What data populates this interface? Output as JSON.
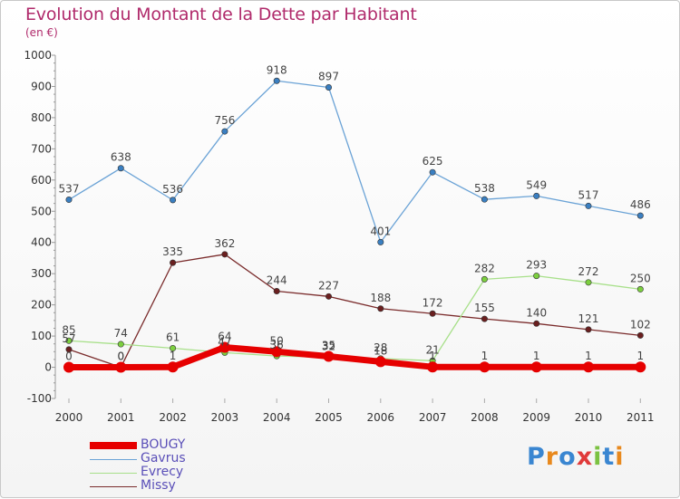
{
  "title": "Evolution du Montant de la Dette par Habitant",
  "unit_label": "(en €)",
  "logo_text": "Proxiti",
  "chart_data": {
    "type": "line",
    "title": "Evolution du Montant de la Dette par Habitant",
    "ylabel": "(en €)",
    "categories": [
      "2000",
      "2001",
      "2002",
      "2003",
      "2004",
      "2005",
      "2006",
      "2007",
      "2008",
      "2009",
      "2010",
      "2011"
    ],
    "ylim": [
      -100,
      1000
    ],
    "yticks": [
      -100,
      0,
      100,
      200,
      300,
      400,
      500,
      600,
      700,
      800,
      900,
      1000
    ],
    "grid": false,
    "legend_position": "bottom-left",
    "series": [
      {
        "name": "Gavrus",
        "color": "#6ba3d6",
        "marker": "#3a7fc1",
        "values": [
          537,
          638,
          536,
          756,
          918,
          897,
          401,
          625,
          538,
          549,
          517,
          486
        ],
        "labels": [
          "537",
          "638",
          "536",
          "756",
          "918",
          "897",
          "401",
          "625",
          "538",
          "549",
          "517",
          "486"
        ]
      },
      {
        "name": "Missy",
        "color": "#7a2b2b",
        "marker": "#6a1f1f",
        "values": [
          57,
          0,
          335,
          362,
          244,
          227,
          188,
          172,
          155,
          140,
          121,
          102
        ],
        "labels": [
          "57",
          "0",
          "335",
          "362",
          "244",
          "227",
          "188",
          "172",
          "155",
          "140",
          "121",
          "102"
        ]
      },
      {
        "name": "Evrecy",
        "color": "#a8e08a",
        "marker": "#7ccf3f",
        "values": [
          85,
          74,
          61,
          47,
          36,
          32,
          28,
          21,
          282,
          293,
          272,
          250
        ],
        "labels": [
          "85",
          "74",
          "61",
          "47",
          "36",
          "32",
          "28",
          "21",
          "282",
          "293",
          "272",
          "250"
        ]
      },
      {
        "name": "BOUGY",
        "color": "#e60000",
        "marker": "#e60000",
        "values": [
          0,
          0,
          1,
          64,
          50,
          35,
          18,
          1,
          1,
          1,
          1,
          1
        ],
        "labels": [
          "0",
          "0",
          "1",
          "64",
          "50",
          "35",
          "18",
          "1",
          "1",
          "1",
          "1",
          "1"
        ]
      }
    ],
    "legend": [
      "BOUGY",
      "Gavrus",
      "Evrecy",
      "Missy"
    ]
  }
}
